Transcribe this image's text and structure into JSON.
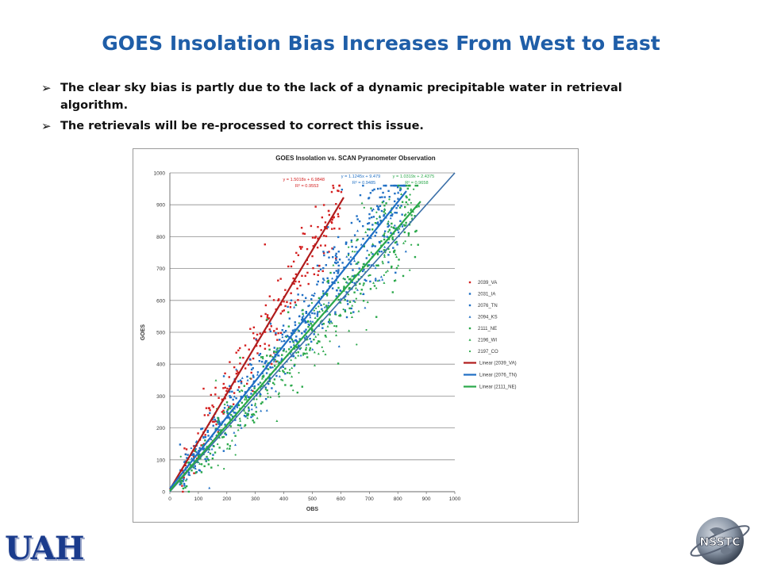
{
  "slide": {
    "title": "GOES Insolation Bias Increases From West to East",
    "bullets": [
      "The clear sky bias is partly due to the lack of a dynamic precipitable water in retrieval algorithm.",
      "The retrievals will be re-processed to correct this issue."
    ],
    "bullet_marker": "➢",
    "logo_left": "UAH",
    "logo_right": "NSSTC"
  },
  "chart_data": {
    "type": "scatter",
    "title": "GOES Insolation vs. SCAN Pyranometer Observation",
    "xlabel": "OBS",
    "ylabel": "GOES",
    "xlim": [
      0,
      1000
    ],
    "ylim": [
      0,
      1000
    ],
    "xticks": [
      0,
      100,
      200,
      300,
      400,
      500,
      600,
      700,
      800,
      900,
      1000
    ],
    "yticks": [
      0,
      100,
      200,
      300,
      400,
      500,
      600,
      700,
      800,
      900,
      1000
    ],
    "grid": "horizontal",
    "legend_position": "right",
    "series": [
      {
        "name": "2039_VA",
        "color": "#d42020",
        "marker": "square",
        "slope": 1.5018,
        "intercept": 6.9848,
        "xmin": 30,
        "xmax": 610,
        "count": 230
      },
      {
        "name": "2031_IA",
        "color": "#1f6fc4",
        "marker": "square",
        "slope": 1.13,
        "intercept": 5,
        "xmin": 30,
        "xmax": 830,
        "count": 140
      },
      {
        "name": "2076_TN",
        "color": "#1f6fc4",
        "marker": "square",
        "slope": 1.1245,
        "intercept": 9.479,
        "xmin": 30,
        "xmax": 830,
        "count": 330
      },
      {
        "name": "2094_KS",
        "color": "#1f6fc4",
        "marker": "triangle",
        "slope": 1.07,
        "intercept": 4,
        "xmin": 30,
        "xmax": 830,
        "count": 140
      },
      {
        "name": "2111_NE",
        "color": "#2aa84a",
        "marker": "square",
        "slope": 1.0319,
        "intercept": 2.4375,
        "xmin": 30,
        "xmax": 880,
        "count": 260
      },
      {
        "name": "2196_WI",
        "color": "#2aa84a",
        "marker": "triangle",
        "slope": 1.0,
        "intercept": 2,
        "xmin": 30,
        "xmax": 860,
        "count": 130
      },
      {
        "name": "2197_CO",
        "color": "#2aa84a",
        "marker": "dot",
        "slope": 1.0,
        "intercept": 0,
        "xmin": 30,
        "xmax": 860,
        "count": 130
      }
    ],
    "trendlines": [
      {
        "name": "Linear (2039_VA)",
        "color": "#b01c1c",
        "slope": 1.5018,
        "intercept": 6.9848,
        "x_end": 610
      },
      {
        "name": "Linear (2076_TN)",
        "color": "#1f6fc4",
        "slope": 1.1245,
        "intercept": 9.479,
        "x_end": 830
      },
      {
        "name": "Linear (2111_NE)",
        "color": "#2aa84a",
        "slope": 1.0319,
        "intercept": 2.4375,
        "x_end": 880
      }
    ],
    "reference_line": {
      "color": "#3a6fa8",
      "slope": 1.0,
      "intercept": 0,
      "x_end": 1000
    },
    "annotations": [
      {
        "text1": "y = 1.5018x + 6.9848",
        "text2": "R² = 0.9553",
        "color": "#d42020",
        "x": 470,
        "y": 975
      },
      {
        "text1": "y = 1.1245x + 9.479",
        "text2": "R² = 0.9485",
        "color": "#1f6fc4",
        "x": 670,
        "y": 985
      },
      {
        "text1": "y = 1.0319x + 2.4375",
        "text2": "R² = 0.9658",
        "color": "#2aa84a",
        "x": 855,
        "y": 985
      }
    ]
  }
}
